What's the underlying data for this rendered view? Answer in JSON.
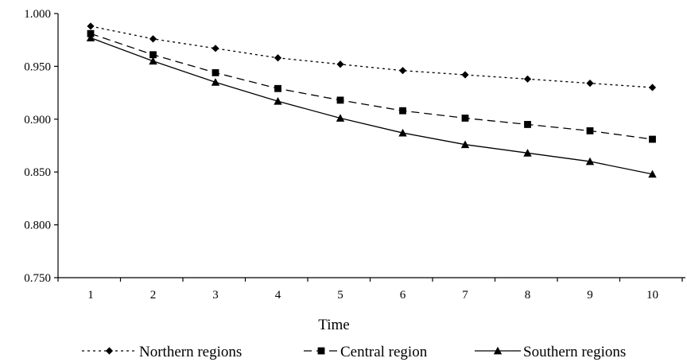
{
  "chart_data": {
    "type": "line",
    "xlabel": "Time",
    "ylabel": "",
    "x": [
      1,
      2,
      3,
      4,
      5,
      6,
      7,
      8,
      9,
      10
    ],
    "ylim": [
      0.75,
      1.0
    ],
    "yticks": [
      "0.750",
      "0.800",
      "0.850",
      "0.900",
      "0.950",
      "1.000"
    ],
    "xticks": [
      "1",
      "2",
      "3",
      "4",
      "5",
      "6",
      "7",
      "8",
      "9",
      "10"
    ],
    "grid": false,
    "legend_position": "bottom",
    "series": [
      {
        "name": "Northern regions",
        "marker": "diamond",
        "line": "dotted",
        "color": "#000000",
        "values": [
          0.988,
          0.976,
          0.967,
          0.958,
          0.952,
          0.946,
          0.942,
          0.938,
          0.934,
          0.93
        ]
      },
      {
        "name": "Central region",
        "marker": "square",
        "line": "dashed",
        "color": "#000000",
        "values": [
          0.981,
          0.961,
          0.944,
          0.929,
          0.918,
          0.908,
          0.901,
          0.895,
          0.889,
          0.881
        ]
      },
      {
        "name": "Southern regions",
        "marker": "triangle",
        "line": "solid",
        "color": "#000000",
        "values": [
          0.977,
          0.955,
          0.935,
          0.917,
          0.901,
          0.887,
          0.876,
          0.868,
          0.86,
          0.848
        ]
      }
    ]
  }
}
